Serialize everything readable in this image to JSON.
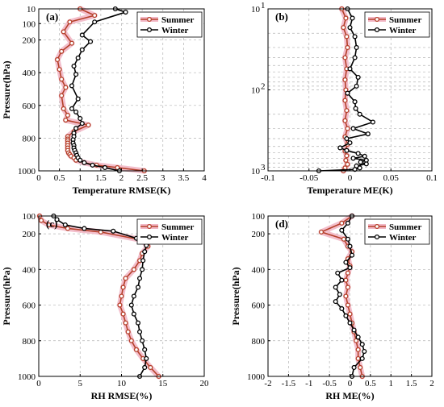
{
  "colors": {
    "summer": "#b5402a",
    "summer_band": "#f2b8c6",
    "winter": "#000000",
    "grid": "#b4b4b4"
  },
  "chart_data": [
    {
      "type": "line",
      "panel": "(a)",
      "xlabel": "Temperature RMSE(K)",
      "ylabel": "Pressure(hPa)",
      "xlim": [
        0,
        4
      ],
      "xticks": [
        "0",
        "0.5",
        "1",
        "1.5",
        "2",
        "2.5",
        "3",
        "3.5",
        "4"
      ],
      "y_scale": "linear",
      "y_inverted": true,
      "ylim": [
        10,
        1000
      ],
      "yticks": [
        "10",
        "100",
        "200",
        "400",
        "600",
        "800",
        "1000"
      ],
      "grid": true,
      "legend": "top-right",
      "series": [
        {
          "name": "Summer",
          "color": "#b5402a",
          "points": [
            [
              1.0,
              10
            ],
            [
              1.35,
              50
            ],
            [
              0.75,
              90
            ],
            [
              0.6,
              150
            ],
            [
              0.8,
              220
            ],
            [
              0.55,
              270
            ],
            [
              0.45,
              320
            ],
            [
              0.5,
              380
            ],
            [
              0.55,
              440
            ],
            [
              0.65,
              490
            ],
            [
              0.55,
              540
            ],
            [
              0.6,
              620
            ],
            [
              0.7,
              660
            ],
            [
              0.65,
              690
            ],
            [
              1.2,
              720
            ],
            [
              0.85,
              760
            ],
            [
              0.7,
              790
            ],
            [
              0.7,
              805
            ],
            [
              0.7,
              815
            ],
            [
              0.7,
              830
            ],
            [
              0.7,
              845
            ],
            [
              0.7,
              860
            ],
            [
              0.7,
              875
            ],
            [
              0.72,
              890
            ],
            [
              0.75,
              900
            ],
            [
              0.78,
              910
            ],
            [
              0.85,
              920
            ],
            [
              0.9,
              935
            ],
            [
              1.1,
              950
            ],
            [
              1.4,
              965
            ],
            [
              1.9,
              980
            ],
            [
              2.55,
              1000
            ]
          ]
        },
        {
          "name": "Winter",
          "color": "#000000",
          "points": [
            [
              1.85,
              10
            ],
            [
              2.1,
              30
            ],
            [
              1.35,
              90
            ],
            [
              1.05,
              170
            ],
            [
              1.25,
              210
            ],
            [
              1.05,
              260
            ],
            [
              0.95,
              310
            ],
            [
              0.85,
              360
            ],
            [
              0.9,
              410
            ],
            [
              0.8,
              480
            ],
            [
              0.95,
              560
            ],
            [
              0.8,
              620
            ],
            [
              0.9,
              640
            ],
            [
              1.0,
              680
            ],
            [
              1.05,
              710
            ],
            [
              0.9,
              740
            ],
            [
              0.85,
              770
            ],
            [
              0.85,
              790
            ],
            [
              0.83,
              810
            ],
            [
              0.83,
              830
            ],
            [
              0.85,
              845
            ],
            [
              0.85,
              860
            ],
            [
              0.87,
              875
            ],
            [
              0.9,
              890
            ],
            [
              0.92,
              905
            ],
            [
              0.95,
              920
            ],
            [
              1.0,
              935
            ],
            [
              1.1,
              950
            ],
            [
              1.3,
              965
            ],
            [
              1.6,
              980
            ],
            [
              1.95,
              1000
            ]
          ]
        }
      ]
    },
    {
      "type": "line",
      "panel": "(b)",
      "xlabel": "Temperature ME(K)",
      "ylabel": "",
      "xlim": [
        -0.1,
        0.1
      ],
      "xticks": [
        "-0.1",
        "-0.05",
        "0",
        "0.05",
        "0.1"
      ],
      "y_scale": "log",
      "y_inverted": true,
      "ylim": [
        10,
        1000
      ],
      "yticks": [
        "10",
        "10",
        "10"
      ],
      "yticks_exponents": [
        "1",
        "2",
        "3"
      ],
      "grid": true,
      "legend": "top-right",
      "series": [
        {
          "name": "Summer",
          "color": "#b5402a",
          "points": [
            [
              -0.01,
              10
            ],
            [
              -0.005,
              13
            ],
            [
              -0.008,
              17
            ],
            [
              -0.004,
              22
            ],
            [
              -0.003,
              30
            ],
            [
              -0.006,
              40
            ],
            [
              -0.004,
              55
            ],
            [
              -0.006,
              75
            ],
            [
              -0.005,
              100
            ],
            [
              -0.006,
              135
            ],
            [
              -0.004,
              180
            ],
            [
              -0.006,
              240
            ],
            [
              -0.003,
              300
            ],
            [
              -0.006,
              380
            ],
            [
              -0.003,
              470
            ],
            [
              -0.006,
              570
            ],
            [
              -0.004,
              650
            ],
            [
              -0.005,
              740
            ],
            [
              -0.003,
              830
            ],
            [
              -0.006,
              920
            ],
            [
              -0.008,
              1000
            ]
          ]
        },
        {
          "name": "Winter",
          "color": "#000000",
          "points": [
            [
              -0.003,
              10
            ],
            [
              0.003,
              13
            ],
            [
              0.0,
              17
            ],
            [
              0.006,
              22
            ],
            [
              0.008,
              30
            ],
            [
              0.006,
              40
            ],
            [
              0.0,
              55
            ],
            [
              0.01,
              70
            ],
            [
              0.008,
              90
            ],
            [
              -0.003,
              110
            ],
            [
              0.006,
              140
            ],
            [
              0.007,
              170
            ],
            [
              0.012,
              200
            ],
            [
              0.028,
              250
            ],
            [
              0.004,
              300
            ],
            [
              0.022,
              350
            ],
            [
              -0.004,
              400
            ],
            [
              0.0,
              450
            ],
            [
              -0.012,
              520
            ],
            [
              -0.004,
              560
            ],
            [
              0.01,
              610
            ],
            [
              0.018,
              660
            ],
            [
              0.004,
              700
            ],
            [
              0.02,
              740
            ],
            [
              0.013,
              780
            ],
            [
              0.02,
              820
            ],
            [
              0.008,
              870
            ],
            [
              0.012,
              920
            ],
            [
              0.006,
              960
            ],
            [
              -0.038,
              1000
            ]
          ]
        }
      ]
    },
    {
      "type": "line",
      "panel": "(c)",
      "xlabel": "RH RMSE(%)",
      "ylabel": "Pressure(hPa)",
      "xlim": [
        0,
        20
      ],
      "xticks": [
        "0",
        "5",
        "10",
        "15",
        "20"
      ],
      "y_scale": "linear",
      "y_inverted": true,
      "ylim": [
        100,
        1000
      ],
      "yticks": [
        "100",
        "200",
        "400",
        "600",
        "800",
        "1000"
      ],
      "grid": true,
      "legend": "top-right",
      "series": [
        {
          "name": "Summer",
          "color": "#b5402a",
          "points": [
            [
              0.1,
              100
            ],
            [
              0.3,
              125
            ],
            [
              1.2,
              150
            ],
            [
              3.5,
              170
            ],
            [
              7.5,
              190
            ],
            [
              12.5,
              235
            ],
            [
              13.2,
              270
            ],
            [
              12.5,
              310
            ],
            [
              12.2,
              350
            ],
            [
              11.5,
              400
            ],
            [
              10.5,
              450
            ],
            [
              10.2,
              500
            ],
            [
              10.0,
              550
            ],
            [
              9.8,
              600
            ],
            [
              10.2,
              650
            ],
            [
              10.5,
              700
            ],
            [
              10.8,
              750
            ],
            [
              11.2,
              800
            ],
            [
              11.8,
              850
            ],
            [
              12.6,
              900
            ],
            [
              13.5,
              950
            ],
            [
              14.5,
              1000
            ]
          ]
        },
        {
          "name": "Winter",
          "color": "#000000",
          "points": [
            [
              1.8,
              100
            ],
            [
              2.2,
              120
            ],
            [
              3.2,
              150
            ],
            [
              5.5,
              170
            ],
            [
              9.0,
              185
            ],
            [
              11.8,
              225
            ],
            [
              13.0,
              265
            ],
            [
              12.8,
              300
            ],
            [
              12.6,
              350
            ],
            [
              12.5,
              400
            ],
            [
              12.2,
              450
            ],
            [
              12.0,
              500
            ],
            [
              11.5,
              550
            ],
            [
              11.2,
              600
            ],
            [
              11.5,
              650
            ],
            [
              12.0,
              700
            ],
            [
              12.2,
              750
            ],
            [
              12.5,
              800
            ],
            [
              12.8,
              850
            ],
            [
              13.0,
              900
            ],
            [
              12.8,
              950
            ],
            [
              12.2,
              1000
            ]
          ]
        }
      ]
    },
    {
      "type": "line",
      "panel": "(d)",
      "xlabel": "RH ME(%)",
      "ylabel": "Pressure(hPa)",
      "xlim": [
        -2,
        2
      ],
      "xticks": [
        "-2",
        "-1.5",
        "-1",
        "-0.5",
        "0",
        "0.5",
        "1",
        "1.5",
        "2"
      ],
      "y_scale": "linear",
      "y_inverted": true,
      "ylim": [
        100,
        1000
      ],
      "yticks": [
        "100",
        "200",
        "400",
        "600",
        "800",
        "1000"
      ],
      "grid": true,
      "legend": "top-right",
      "series": [
        {
          "name": "Summer",
          "color": "#b5402a",
          "points": [
            [
              0.05,
              100
            ],
            [
              -0.2,
              140
            ],
            [
              -0.7,
              190
            ],
            [
              -0.15,
              230
            ],
            [
              -0.05,
              270
            ],
            [
              0.05,
              300
            ],
            [
              -0.05,
              340
            ],
            [
              0.0,
              380
            ],
            [
              -0.05,
              420
            ],
            [
              -0.1,
              460
            ],
            [
              -0.05,
              500
            ],
            [
              -0.1,
              550
            ],
            [
              -0.05,
              600
            ],
            [
              0.0,
              650
            ],
            [
              0.05,
              700
            ],
            [
              0.1,
              750
            ],
            [
              0.15,
              800
            ],
            [
              0.2,
              850
            ],
            [
              0.2,
              900
            ],
            [
              0.25,
              950
            ],
            [
              0.3,
              1000
            ]
          ]
        },
        {
          "name": "Winter",
          "color": "#000000",
          "points": [
            [
              0.05,
              100
            ],
            [
              -0.05,
              140
            ],
            [
              -0.2,
              180
            ],
            [
              -0.05,
              230
            ],
            [
              0.0,
              270
            ],
            [
              0.05,
              320
            ],
            [
              -0.1,
              360
            ],
            [
              0.0,
              390
            ],
            [
              -0.3,
              420
            ],
            [
              -0.2,
              460
            ],
            [
              -0.35,
              500
            ],
            [
              -0.25,
              540
            ],
            [
              -0.35,
              580
            ],
            [
              -0.2,
              620
            ],
            [
              -0.1,
              660
            ],
            [
              0.0,
              700
            ],
            [
              0.1,
              740
            ],
            [
              0.2,
              780
            ],
            [
              0.3,
              820
            ],
            [
              0.35,
              860
            ],
            [
              0.3,
              900
            ],
            [
              0.1,
              950
            ],
            [
              0.05,
              1000
            ]
          ]
        }
      ]
    }
  ]
}
